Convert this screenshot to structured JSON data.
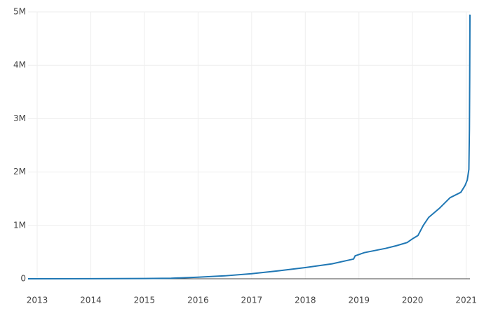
{
  "chart_data": {
    "type": "line",
    "x": [
      2012.83,
      2014,
      2015,
      2015.5,
      2016,
      2016.5,
      2017,
      2017.5,
      2018,
      2018.5,
      2018.9,
      2018.93,
      2019.1,
      2019.5,
      2019.7,
      2019.9,
      2020,
      2020.1,
      2020.2,
      2020.3,
      2020.5,
      2020.7,
      2020.9,
      2020.98,
      2021.02,
      2021.05,
      2021.06,
      2021.065,
      2021.07
    ],
    "series": [
      {
        "color": "#1f77b4",
        "values": [
          0,
          2000,
          5000,
          10000,
          30000,
          55000,
          95000,
          150000,
          210000,
          280000,
          370000,
          430000,
          490000,
          570000,
          620000,
          680000,
          750000,
          810000,
          1000000,
          1150000,
          1320000,
          1520000,
          1620000,
          1750000,
          1850000,
          2050000,
          2800000,
          3700000,
          4950000
        ]
      }
    ],
    "xlim": [
      2012.83,
      2021.07
    ],
    "xticks": [
      2013,
      2014,
      2015,
      2016,
      2017,
      2018,
      2019,
      2020,
      2021
    ],
    "ylim": [
      0,
      5000000
    ],
    "yticks": [
      {
        "value": 0,
        "label": "0"
      },
      {
        "value": 1000000,
        "label": "1M"
      },
      {
        "value": 2000000,
        "label": "2M"
      },
      {
        "value": 3000000,
        "label": "3M"
      },
      {
        "value": 4000000,
        "label": "4M"
      },
      {
        "value": 5000000,
        "label": "5M"
      }
    ],
    "grid": true
  }
}
